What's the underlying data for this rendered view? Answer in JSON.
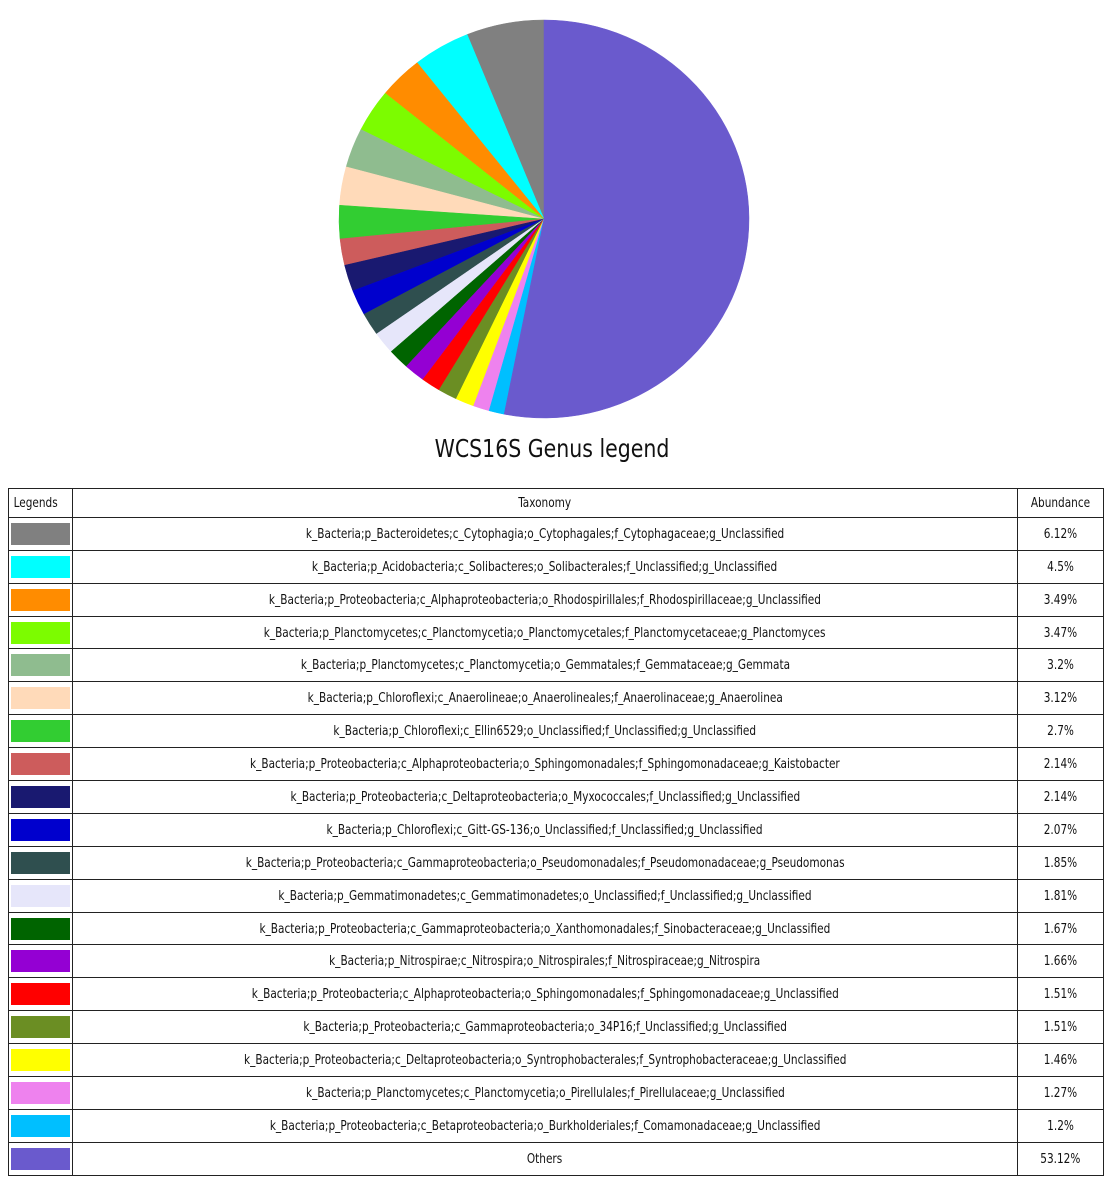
{
  "chart_data": {
    "type": "pie",
    "title": "WCS16S Genus legend",
    "table_headers": [
      "Legends",
      "Taxonomy",
      "Abundance"
    ],
    "slices": [
      {
        "label": "k_Bacteria;p_Bacteroidetes;c_Cytophagia;o_Cytophagales;f_Cytophagaceae;g_Unclassified",
        "value": 6.12,
        "value_label": "6.12%",
        "color": "#808080"
      },
      {
        "label": "k_Bacteria;p_Acidobacteria;c_Solibacteres;o_Solibacterales;f_Unclassified;g_Unclassified",
        "value": 4.5,
        "value_label": "4.5%",
        "color": "#00FFFF"
      },
      {
        "label": "k_Bacteria;p_Proteobacteria;c_Alphaproteobacteria;o_Rhodospirillales;f_Rhodospirillaceae;g_Unclassified",
        "value": 3.49,
        "value_label": "3.49%",
        "color": "#FF8C00"
      },
      {
        "label": "k_Bacteria;p_Planctomycetes;c_Planctomycetia;o_Planctomycetales;f_Planctomycetaceae;g_Planctomyces",
        "value": 3.47,
        "value_label": "3.47%",
        "color": "#7CFC00"
      },
      {
        "label": "k_Bacteria;p_Planctomycetes;c_Planctomycetia;o_Gemmatales;f_Gemmataceae;g_Gemmata",
        "value": 3.2,
        "value_label": "3.2%",
        "color": "#8FBC8F"
      },
      {
        "label": "k_Bacteria;p_Chloroflexi;c_Anaerolineae;o_Anaerolineales;f_Anaerolinaceae;g_Anaerolinea",
        "value": 3.12,
        "value_label": "3.12%",
        "color": "#FFDAB9"
      },
      {
        "label": "k_Bacteria;p_Chloroflexi;c_Ellin6529;o_Unclassified;f_Unclassified;g_Unclassified",
        "value": 2.7,
        "value_label": "2.7%",
        "color": "#32CD32"
      },
      {
        "label": "k_Bacteria;p_Proteobacteria;c_Alphaproteobacteria;o_Sphingomonadales;f_Sphingomonadaceae;g_Kaistobacter",
        "value": 2.14,
        "value_label": "2.14%",
        "color": "#CD5C5C"
      },
      {
        "label": "k_Bacteria;p_Proteobacteria;c_Deltaproteobacteria;o_Myxococcales;f_Unclassified;g_Unclassified",
        "value": 2.14,
        "value_label": "2.14%",
        "color": "#191970"
      },
      {
        "label": "k_Bacteria;p_Chloroflexi;c_Gitt-GS-136;o_Unclassified;f_Unclassified;g_Unclassified",
        "value": 2.07,
        "value_label": "2.07%",
        "color": "#0000CD"
      },
      {
        "label": "k_Bacteria;p_Proteobacteria;c_Gammaproteobacteria;o_Pseudomonadales;f_Pseudomonadaceae;g_Pseudomonas",
        "value": 1.85,
        "value_label": "1.85%",
        "color": "#2F4F4F"
      },
      {
        "label": "k_Bacteria;p_Gemmatimonadetes;c_Gemmatimonadetes;o_Unclassified;f_Unclassified;g_Unclassified",
        "value": 1.81,
        "value_label": "1.81%",
        "color": "#E6E6FA"
      },
      {
        "label": "k_Bacteria;p_Proteobacteria;c_Gammaproteobacteria;o_Xanthomonadales;f_Sinobacteraceae;g_Unclassified",
        "value": 1.67,
        "value_label": "1.67%",
        "color": "#006400"
      },
      {
        "label": "k_Bacteria;p_Nitrospirae;c_Nitrospira;o_Nitrospirales;f_Nitrospiraceae;g_Nitrospira",
        "value": 1.66,
        "value_label": "1.66%",
        "color": "#9400D3"
      },
      {
        "label": "k_Bacteria;p_Proteobacteria;c_Alphaproteobacteria;o_Sphingomonadales;f_Sphingomonadaceae;g_Unclassified",
        "value": 1.51,
        "value_label": "1.51%",
        "color": "#FF0000"
      },
      {
        "label": "k_Bacteria;p_Proteobacteria;c_Gammaproteobacteria;o_34P16;f_Unclassified;g_Unclassified",
        "value": 1.51,
        "value_label": "1.51%",
        "color": "#6B8E23"
      },
      {
        "label": "k_Bacteria;p_Proteobacteria;c_Deltaproteobacteria;o_Syntrophobacterales;f_Syntrophobacteraceae;g_Unclassified",
        "value": 1.46,
        "value_label": "1.46%",
        "color": "#FFFF00"
      },
      {
        "label": "k_Bacteria;p_Planctomycetes;c_Planctomycetia;o_Pirellulales;f_Pirellulaceae;g_Unclassified",
        "value": 1.27,
        "value_label": "1.27%",
        "color": "#EE82EE"
      },
      {
        "label": "k_Bacteria;p_Proteobacteria;c_Betaproteobacteria;o_Burkholderiales;f_Comamonadaceae;g_Unclassified",
        "value": 1.2,
        "value_label": "1.2%",
        "color": "#00BFFF"
      },
      {
        "label": "Others",
        "value": 53.12,
        "value_label": "53.12%",
        "color": "#6A5ACD"
      }
    ]
  }
}
